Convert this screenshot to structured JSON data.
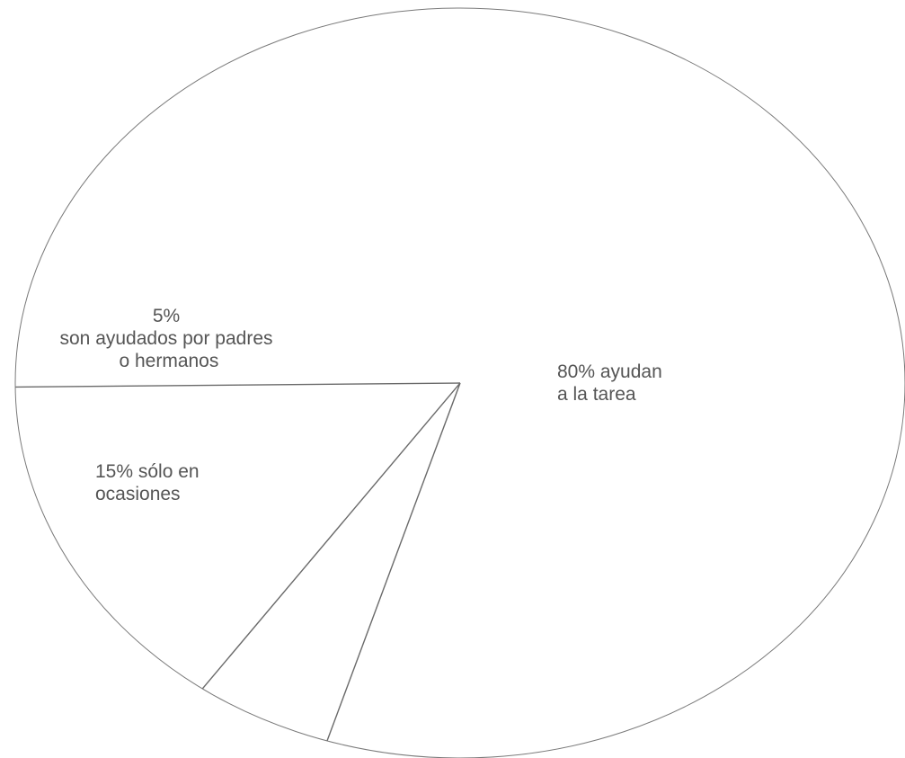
{
  "chart_data": {
    "type": "pie",
    "title": "",
    "slices": [
      {
        "value": 80,
        "label_lines": [
          "80% ayudan",
          "a la tarea"
        ]
      },
      {
        "value": 5,
        "label_lines": [
          "5%",
          "son ayudados por padres",
          " o hermanos"
        ]
      },
      {
        "value": 15,
        "label_lines": [
          "15% sólo en",
          "ocasiones"
        ]
      }
    ],
    "legend": "none",
    "colors": {
      "fill": "#ffffff",
      "outline": "#7a7a7a",
      "text": "#555555"
    }
  }
}
